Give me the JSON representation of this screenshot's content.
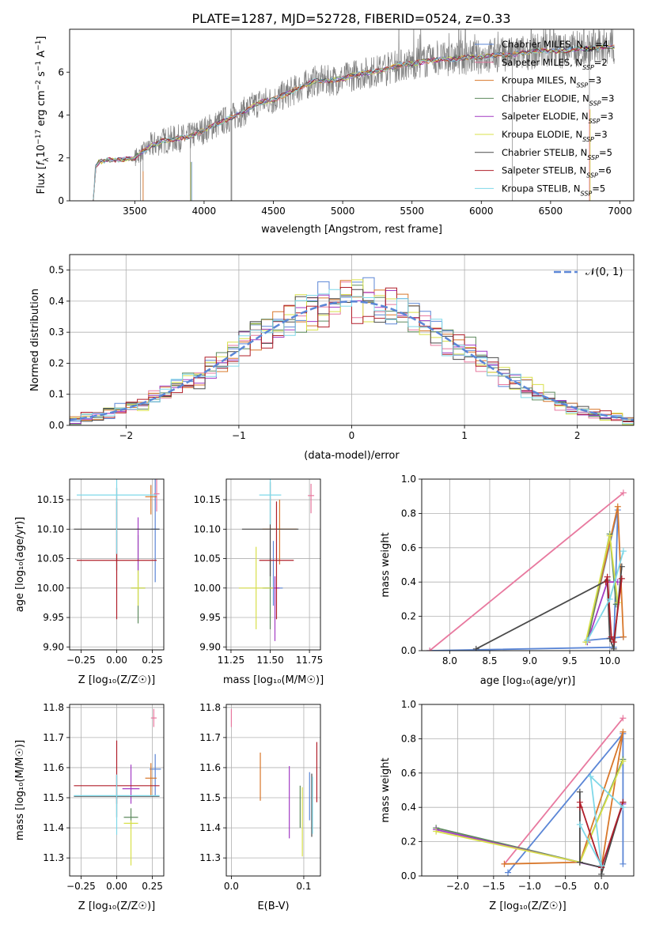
{
  "figure": {
    "title": "PLATE=1287, MJD=52728, FIBERID=0524, z=0.33"
  },
  "models": [
    {
      "name": "Chabrier MILES, N$_{SSP}$=4",
      "label_main": "Chabrier MILES, N",
      "label_sub": "SSP",
      "label_tail": "=4",
      "color": "#5b86d6"
    },
    {
      "name": "Salpeter MILES",
      "label_main": "Salpeter MILES, N",
      "label_sub": "SSP",
      "label_tail": "=2",
      "color": "#e8799f"
    },
    {
      "name": "Kroupa MILES",
      "label_main": "Kroupa MILES, N",
      "label_sub": "SSP",
      "label_tail": "=3",
      "color": "#d8772a"
    },
    {
      "name": "Chabrier ELODIE",
      "label_main": "Chabrier ELODIE, N",
      "label_sub": "SSP",
      "label_tail": "=3",
      "color": "#5e8a5e"
    },
    {
      "name": "Salpeter ELODIE",
      "label_main": "Salpeter ELODIE, N",
      "label_sub": "SSP",
      "label_tail": "=3",
      "color": "#a33cc4"
    },
    {
      "name": "Kroupa ELODIE",
      "label_main": "Kroupa ELODIE, N",
      "label_sub": "SSP",
      "label_tail": "=3",
      "color": "#d8e04a"
    },
    {
      "name": "Chabrier STELIB",
      "label_main": "Chabrier STELIB, N",
      "label_sub": "SSP",
      "label_tail": "=5",
      "color": "#4a4a4a"
    },
    {
      "name": "Salpeter STELIB",
      "label_main": "Salpeter STELIB, N",
      "label_sub": "SSP",
      "label_tail": "=6",
      "color": "#b01f2a"
    },
    {
      "name": "Kroupa STELIB",
      "label_main": "Kroupa STELIB, N",
      "label_sub": "SSP",
      "label_tail": "=5",
      "color": "#7fd8e8"
    }
  ],
  "chart_data": [
    {
      "id": "spectrum",
      "type": "line",
      "xlabel": "wavelength [Angstrom, rest frame]",
      "ylabel_parts": [
        "Flux [",
        "f",
        "λ",
        "10",
        "−17",
        " erg cm",
        "−2",
        " s",
        "−1",
        " A",
        "−1",
        "]"
      ],
      "xlim": [
        3030,
        7100
      ],
      "ylim": [
        0,
        8
      ],
      "xticks": [
        3500,
        4000,
        4500,
        5000,
        5500,
        6000,
        6500,
        7000
      ],
      "yticks": [
        0,
        2,
        4,
        6
      ],
      "data_color": "#808080",
      "continuum": [
        [
          3200,
          0
        ],
        [
          3215,
          1.6
        ],
        [
          3240,
          1.8
        ],
        [
          3300,
          1.9
        ],
        [
          3400,
          1.9
        ],
        [
          3500,
          2.0
        ],
        [
          3600,
          2.5
        ],
        [
          3700,
          2.8
        ],
        [
          3800,
          2.9
        ],
        [
          3900,
          3.0
        ],
        [
          4000,
          3.3
        ],
        [
          4100,
          3.6
        ],
        [
          4200,
          3.9
        ],
        [
          4300,
          4.2
        ],
        [
          4400,
          4.6
        ],
        [
          4500,
          4.7
        ],
        [
          4600,
          5.0
        ],
        [
          4700,
          5.3
        ],
        [
          4800,
          5.6
        ],
        [
          4900,
          5.6
        ],
        [
          5000,
          5.7
        ],
        [
          5100,
          5.9
        ],
        [
          5200,
          6.0
        ],
        [
          5300,
          6.1
        ],
        [
          5400,
          6.3
        ],
        [
          5500,
          6.4
        ],
        [
          5600,
          6.5
        ],
        [
          5700,
          6.6
        ],
        [
          5800,
          6.6
        ],
        [
          5900,
          6.7
        ],
        [
          6000,
          6.7
        ],
        [
          6100,
          6.8
        ],
        [
          6200,
          6.8
        ],
        [
          6300,
          6.9
        ],
        [
          6400,
          7.0
        ],
        [
          6500,
          7.0
        ],
        [
          6600,
          7.0
        ],
        [
          6700,
          7.1
        ],
        [
          6800,
          7.1
        ],
        [
          6900,
          7.2
        ],
        [
          6960,
          7.2
        ]
      ]
    },
    {
      "id": "residuals",
      "type": "histogram",
      "xlabel": "(data-model)/error",
      "ylabel": "Normed distribution",
      "xlim": [
        -2.5,
        2.5
      ],
      "ylim": [
        0,
        0.55
      ],
      "xticks": [
        -2,
        -1,
        0,
        1,
        2
      ],
      "yticks": [
        0,
        0.1,
        0.2,
        0.3,
        0.4,
        0.5
      ],
      "gauss_label": "𝒩(0, 1)",
      "gauss_color": "#5b86d6",
      "bin_width": 0.1
    },
    {
      "id": "age_vs_Z",
      "type": "errorbar",
      "xlabel": "Z [log₁₀(Z/Z☉)]",
      "ylabel": "age  [log₁₀(age/yr)]",
      "xlim": [
        -0.33,
        0.33
      ],
      "ylim": [
        9.895,
        10.185
      ],
      "xticks": [
        -0.25,
        0,
        0.25
      ],
      "xticklabels": [
        "−0.25",
        "0.00",
        "0.25"
      ],
      "yticks": [
        9.9,
        9.95,
        10.0,
        10.05,
        10.1,
        10.15
      ],
      "points": [
        {
          "model": 0,
          "x": 0.27,
          "y": 10.1,
          "xerr": 0.03,
          "yerr": [
            0.09,
            0.09
          ]
        },
        {
          "model": 1,
          "x": 0.28,
          "y": 10.16,
          "xerr": 0.02,
          "yerr": [
            0.03,
            0.03
          ]
        },
        {
          "model": 2,
          "x": 0.24,
          "y": 10.155,
          "xerr": 0.04,
          "yerr": [
            0.03,
            0.02
          ]
        },
        {
          "model": 3,
          "x": 0.15,
          "y": 10.0,
          "xerr": 0.05,
          "yerr": [
            0.06,
            0.09
          ]
        },
        {
          "model": 4,
          "x": 0.15,
          "y": 10.1,
          "xerr": 0.01,
          "yerr": [
            0.07,
            0.02
          ]
        },
        {
          "model": 5,
          "x": 0.15,
          "y": 10.0,
          "xerr": 0.05,
          "yerr": [
            0.03,
            0.03
          ]
        },
        {
          "model": 6,
          "x": 0.0,
          "y": 10.1,
          "xerr": 0.3,
          "yerr": [
            0.07,
            0.07
          ]
        },
        {
          "model": 7,
          "x": 0.0,
          "y": 10.047,
          "xerr": 0.28,
          "yerr": [
            0.1,
            0.1
          ]
        },
        {
          "model": 8,
          "x": 0.0,
          "y": 10.158,
          "xerr": 0.28,
          "yerr": [
            0.1,
            0.1
          ]
        }
      ]
    },
    {
      "id": "age_vs_mass",
      "type": "errorbar",
      "xlabel": "mass [log₁₀(M/M☉)]",
      "ylabel": "",
      "xlim": [
        11.22,
        11.82
      ],
      "ylim": [
        9.895,
        10.185
      ],
      "xticks": [
        11.25,
        11.5,
        11.75
      ],
      "xticklabels": [
        "11.25",
        "11.50",
        "11.75"
      ],
      "yticks": [
        9.9,
        9.95,
        10.0,
        10.05,
        10.1,
        10.15
      ],
      "points": [
        {
          "model": 0,
          "x": 11.52,
          "y": 10.0,
          "xerr": 0.06,
          "yerr": [
            0.03,
            0.08
          ]
        },
        {
          "model": 1,
          "x": 11.76,
          "y": 10.157,
          "xerr": 0.02,
          "yerr": [
            0.03,
            0.02
          ]
        },
        {
          "model": 2,
          "x": 11.56,
          "y": 10.1,
          "xerr": 0.11,
          "yerr": [
            0.06,
            0.05
          ]
        },
        {
          "model": 3,
          "x": 11.5,
          "y": 10.0,
          "xerr": 0.05,
          "yerr": [
            0.07,
            0.05
          ]
        },
        {
          "model": 4,
          "x": 11.53,
          "y": 10.0,
          "xerr": 0.03,
          "yerr": [
            0.09,
            0.02
          ]
        },
        {
          "model": 5,
          "x": 11.41,
          "y": 10.0,
          "xerr": 0.11,
          "yerr": [
            0.07,
            0.07
          ]
        },
        {
          "model": 6,
          "x": 11.5,
          "y": 10.1,
          "xerr": 0.18,
          "yerr": [
            0.08,
            0.08
          ]
        },
        {
          "model": 7,
          "x": 11.54,
          "y": 10.047,
          "xerr": 0.11,
          "yerr": [
            0.1,
            0.1
          ]
        },
        {
          "model": 8,
          "x": 11.5,
          "y": 10.158,
          "xerr": 0.07,
          "yerr": [
            0.05,
            0.05
          ]
        }
      ]
    },
    {
      "id": "weight_vs_age",
      "type": "line",
      "xlabel": "age  [log₁₀(age/yr)]",
      "ylabel": "mass weight",
      "xlim": [
        7.65,
        10.3
      ],
      "ylim": [
        0,
        1
      ],
      "xticks": [
        8.0,
        8.5,
        9.0,
        9.5,
        10.0
      ],
      "xticklabels": [
        "8.0",
        "8.5",
        "9.0",
        "9.5",
        "10.0"
      ],
      "yticks": [
        0,
        0.2,
        0.4,
        0.6,
        0.8,
        1.0
      ],
      "series": [
        {
          "model": 0,
          "x": [
            7.75,
            10.05,
            10.1,
            9.72,
            10.17
          ],
          "y": [
            0.0,
            0.02,
            0.82,
            0.06,
            0.08
          ]
        },
        {
          "model": 1,
          "x": [
            7.75,
            10.17
          ],
          "y": [
            0.0,
            0.92
          ]
        },
        {
          "model": 2,
          "x": [
            9.72,
            10.1,
            10.17
          ],
          "y": [
            0.06,
            0.84,
            0.08
          ]
        },
        {
          "model": 3,
          "x": [
            9.72,
            10.0,
            10.08
          ],
          "y": [
            0.05,
            0.68,
            0.27
          ]
        },
        {
          "model": 4,
          "x": [
            9.72,
            9.97,
            10.1
          ],
          "y": [
            0.05,
            0.4,
            0.4
          ]
        },
        {
          "model": 5,
          "x": [
            9.7,
            10.0,
            10.1
          ],
          "y": [
            0.05,
            0.67,
            0.28
          ]
        },
        {
          "model": 6,
          "x": [
            8.33,
            9.97,
            10.0,
            10.05,
            10.15
          ],
          "y": [
            0.01,
            0.41,
            0.07,
            0.01,
            0.49
          ]
        },
        {
          "model": 7,
          "x": [
            9.95,
            9.97,
            10.02,
            10.05,
            10.15
          ],
          "y": [
            0.4,
            0.43,
            0.08,
            0.05,
            0.42
          ]
        },
        {
          "model": 8,
          "x": [
            9.72,
            10.0,
            10.17
          ],
          "y": [
            0.06,
            0.3,
            0.58
          ]
        }
      ]
    },
    {
      "id": "mass_vs_Z",
      "type": "errorbar",
      "xlabel": "Z [log₁₀(Z/Z☉)]",
      "ylabel": "mass [log₁₀(M/M☉)]",
      "xlim": [
        -0.33,
        0.33
      ],
      "ylim": [
        11.24,
        11.81
      ],
      "xticks": [
        -0.25,
        0,
        0.25
      ],
      "xticklabels": [
        "−0.25",
        "0.00",
        "0.25"
      ],
      "yticks": [
        11.3,
        11.4,
        11.5,
        11.6,
        11.7,
        11.8
      ],
      "points": [
        {
          "model": 0,
          "x": 0.27,
          "y": 11.595,
          "xerr": 0.04,
          "yerr": [
            0.09,
            0.05
          ]
        },
        {
          "model": 1,
          "x": 0.26,
          "y": 11.765,
          "xerr": 0.02,
          "yerr": [
            0.03,
            0.03
          ]
        },
        {
          "model": 2,
          "x": 0.24,
          "y": 11.565,
          "xerr": 0.04,
          "yerr": [
            0.06,
            0.05
          ]
        },
        {
          "model": 3,
          "x": 0.1,
          "y": 11.435,
          "xerr": 0.05,
          "yerr": [
            0.03,
            0.03
          ]
        },
        {
          "model": 4,
          "x": 0.1,
          "y": 11.53,
          "xerr": 0.06,
          "yerr": [
            0.05,
            0.08
          ]
        },
        {
          "model": 5,
          "x": 0.1,
          "y": 11.415,
          "xerr": 0.05,
          "yerr": [
            0.14,
            0.01
          ]
        },
        {
          "model": 6,
          "x": 0.0,
          "y": 11.505,
          "xerr": 0.3,
          "yerr": [
            0.07,
            0.07
          ]
        },
        {
          "model": 7,
          "x": 0.0,
          "y": 11.54,
          "xerr": 0.3,
          "yerr": [
            0.06,
            0.15
          ]
        },
        {
          "model": 8,
          "x": 0.0,
          "y": 11.507,
          "xerr": 0.3,
          "yerr": [
            0.13,
            0.07
          ]
        }
      ]
    },
    {
      "id": "mass_vs_ebv",
      "type": "errorbar",
      "xlabel": "E(B-V)",
      "ylabel": "",
      "xlim": [
        -0.007,
        0.123
      ],
      "ylim": [
        11.24,
        11.81
      ],
      "xticks": [
        0.0,
        0.1
      ],
      "xticklabels": [
        "0.0",
        "0.1"
      ],
      "yticks": [
        11.3,
        11.4,
        11.5,
        11.6,
        11.7,
        11.8
      ],
      "points": [
        {
          "model": 0,
          "x": 0.108,
          "y": 11.515,
          "xerr": 0,
          "yerr": [
            0.09,
            0.07
          ]
        },
        {
          "model": 1,
          "x": 0.0,
          "y": 11.765,
          "xerr": 0,
          "yerr": [
            0.03,
            0.03
          ]
        },
        {
          "model": 2,
          "x": 0.04,
          "y": 11.57,
          "xerr": 0,
          "yerr": [
            0.08,
            0.08
          ]
        },
        {
          "model": 3,
          "x": 0.095,
          "y": 11.47,
          "xerr": 0,
          "yerr": [
            0.07,
            0.07
          ]
        },
        {
          "model": 4,
          "x": 0.08,
          "y": 11.485,
          "xerr": 0,
          "yerr": [
            0.12,
            0.12
          ]
        },
        {
          "model": 5,
          "x": 0.098,
          "y": 11.425,
          "xerr": 0,
          "yerr": [
            0.12,
            0.11
          ]
        },
        {
          "model": 6,
          "x": 0.111,
          "y": 11.48,
          "xerr": 0,
          "yerr": [
            0.11,
            0.1
          ]
        },
        {
          "model": 7,
          "x": 0.118,
          "y": 11.585,
          "xerr": 0,
          "yerr": [
            0.1,
            0.1
          ]
        },
        {
          "model": 8,
          "x": 0.112,
          "y": 11.47,
          "xerr": 0,
          "yerr": [
            0.09,
            0.1
          ]
        }
      ]
    },
    {
      "id": "weight_vs_Z",
      "type": "line",
      "xlabel": "Z [log₁₀(Z/Z☉)]",
      "ylabel": "mass weight",
      "xlim": [
        -2.5,
        0.45
      ],
      "ylim": [
        0,
        1
      ],
      "xticks": [
        -2.0,
        -1.5,
        -1.0,
        -0.5,
        0.0
      ],
      "xticklabels": [
        "−2.0",
        "−1.5",
        "−1.0",
        "−0.5",
        "0.0"
      ],
      "yticks": [
        0,
        0.2,
        0.4,
        0.6,
        0.8,
        1.0
      ],
      "series": [
        {
          "model": 0,
          "x": [
            -1.3,
            0.3,
            0.3
          ],
          "y": [
            0.02,
            0.83,
            0.07
          ]
        },
        {
          "model": 1,
          "x": [
            -1.35,
            0.3
          ],
          "y": [
            0.07,
            0.92
          ]
        },
        {
          "model": 2,
          "x": [
            -1.35,
            -0.3,
            0.3,
            0.0
          ],
          "y": [
            0.07,
            0.08,
            0.84,
            0.05
          ]
        },
        {
          "model": 3,
          "x": [
            -2.3,
            -0.3,
            0.3
          ],
          "y": [
            0.28,
            0.08,
            0.68
          ]
        },
        {
          "model": 4,
          "x": [
            -2.3,
            0.0,
            0.3
          ],
          "y": [
            0.27,
            0.05,
            0.42
          ]
        },
        {
          "model": 5,
          "x": [
            -2.3,
            -0.3,
            0.3
          ],
          "y": [
            0.26,
            0.08,
            0.67
          ]
        },
        {
          "model": 6,
          "x": [
            -0.3,
            -0.3,
            0.0,
            0.0,
            0.3
          ],
          "y": [
            0.49,
            0.08,
            0.05,
            0.01,
            0.43
          ]
        },
        {
          "model": 7,
          "x": [
            -0.3,
            -0.3,
            0.0,
            0.3
          ],
          "y": [
            0.4,
            0.43,
            0.05,
            0.43
          ]
        },
        {
          "model": 8,
          "x": [
            -0.3,
            0.0,
            -0.15,
            0.3
          ],
          "y": [
            0.3,
            0.06,
            0.58,
            0.4
          ]
        }
      ]
    }
  ]
}
